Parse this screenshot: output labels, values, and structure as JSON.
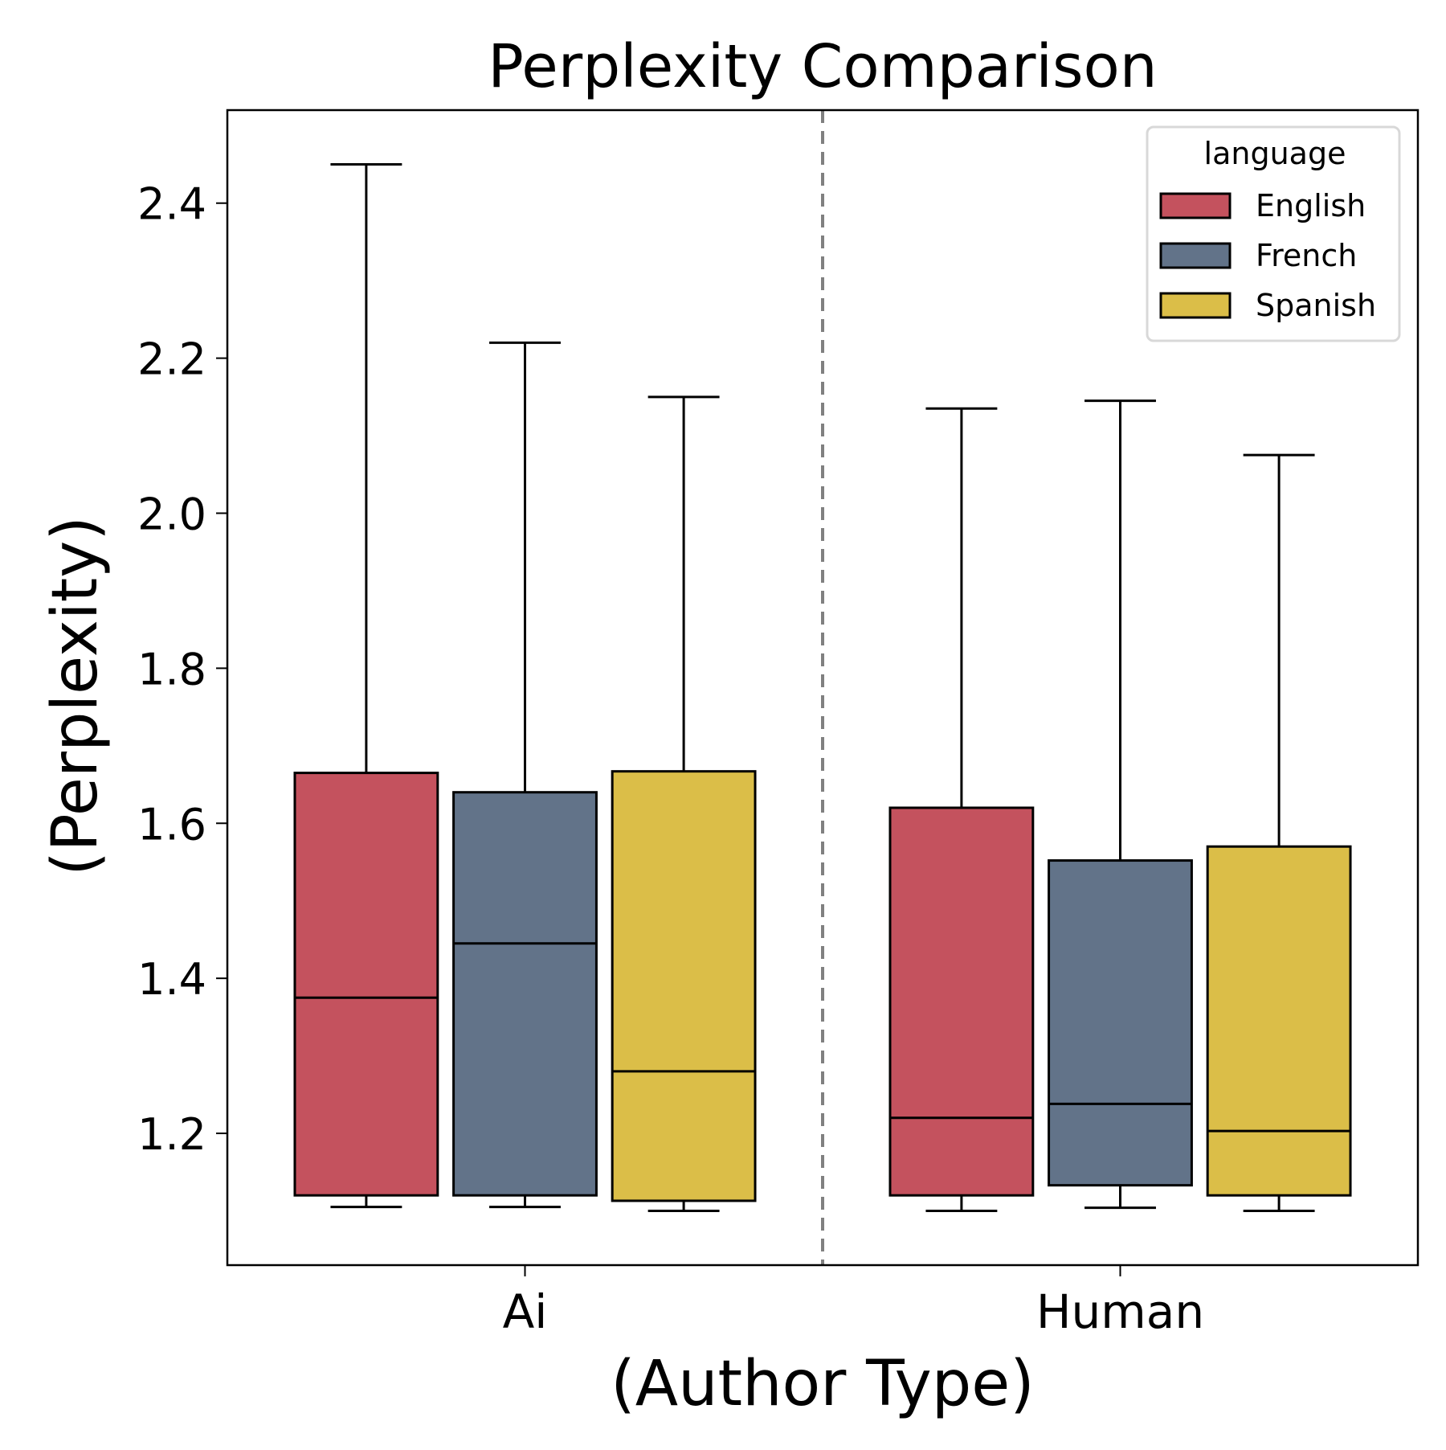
{
  "chart_data": {
    "type": "box",
    "title": "Perplexity Comparison",
    "xlabel": "(Author Type)",
    "ylabel": "(Perplexity)",
    "categories": [
      "Ai",
      "Human"
    ],
    "ylim": [
      1.03,
      2.52
    ],
    "yticks": [
      1.2,
      1.4,
      1.6,
      1.8,
      2.0,
      2.2,
      2.4
    ],
    "ytick_labels": [
      "1.2",
      "1.4",
      "1.6",
      "1.8",
      "2.0",
      "2.2",
      "2.4"
    ],
    "grid": false,
    "separator": {
      "style": "dashed",
      "color": "#808080"
    },
    "legend": {
      "title": "language",
      "position": "top-right",
      "entries": [
        "English",
        "French",
        "Spanish"
      ]
    },
    "series": [
      {
        "name": "English",
        "color": "#c4525e",
        "boxes": [
          {
            "category": "Ai",
            "min": 1.105,
            "q1": 1.12,
            "median": 1.375,
            "q3": 1.665,
            "max": 2.45
          },
          {
            "category": "Human",
            "min": 1.1,
            "q1": 1.12,
            "median": 1.22,
            "q3": 1.62,
            "max": 2.135
          }
        ]
      },
      {
        "name": "French",
        "color": "#627389",
        "boxes": [
          {
            "category": "Ai",
            "min": 1.105,
            "q1": 1.12,
            "median": 1.445,
            "q3": 1.64,
            "max": 2.22
          },
          {
            "category": "Human",
            "min": 1.104,
            "q1": 1.133,
            "median": 1.238,
            "q3": 1.552,
            "max": 2.145
          }
        ]
      },
      {
        "name": "Spanish",
        "color": "#dbbe48",
        "boxes": [
          {
            "category": "Ai",
            "min": 1.1,
            "q1": 1.113,
            "median": 1.28,
            "q3": 1.667,
            "max": 2.15
          },
          {
            "category": "Human",
            "min": 1.1,
            "q1": 1.12,
            "median": 1.203,
            "q3": 1.57,
            "max": 2.075
          }
        ]
      }
    ]
  }
}
